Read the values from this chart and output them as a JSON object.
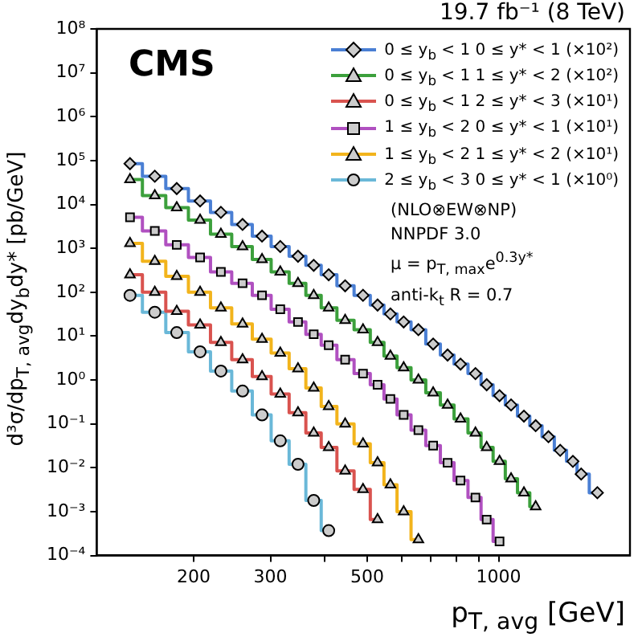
{
  "chart_data": {
    "type": "step",
    "title": "19.7 fb⁻¹ (8 TeV)",
    "xlabel": "p$_{T, avg}$ [GeV]",
    "ylabel": "d³σ/dp$_{T, avg}$dy$_{b}$dy* [pb/GeV]",
    "annotations": [
      "CMS",
      "(NLO⊗EW⊗NP)",
      "NNPDF 3.0",
      "μ = p$_{T, max}$e$^{0.3y*}$",
      "anti-k$_{t}$ R = 0.7"
    ],
    "log": "xy",
    "grid": false,
    "legend": "top right",
    "xlim": [
      120,
      2000
    ],
    "xticks": [
      200,
      300,
      {
        "value": 400,
        "label": null
      },
      500,
      {
        "value": 600,
        "label": null
      },
      {
        "value": 700,
        "label": null
      },
      {
        "value": 800,
        "label": null
      },
      {
        "value": 900,
        "label": null
      },
      1000
    ],
    "ylim": [
      0.0001,
      100000000
    ],
    "yticks": [
      {
        "value": 0.0001,
        "label": "10⁻⁴"
      },
      {
        "value": 0.001,
        "label": "10⁻³"
      },
      {
        "value": 0.01,
        "label": "10⁻²"
      },
      {
        "value": 0.1,
        "label": "10⁻¹"
      },
      {
        "value": 1,
        "label": "10⁰"
      },
      {
        "value": 10,
        "label": "10¹"
      },
      {
        "value": 100,
        "label": "10²"
      },
      {
        "value": 1000,
        "label": "10³"
      },
      {
        "value": 10000,
        "label": "10⁴"
      },
      {
        "value": 100000,
        "label": "10⁵"
      },
      {
        "value": 1000000,
        "label": "10⁶"
      },
      {
        "value": 10000000,
        "label": "10⁷"
      },
      {
        "value": 100000000,
        "label": "10⁸"
      }
    ],
    "x": [
      143,
      163,
      183,
      207,
      231,
      259,
      287,
      316,
      347,
      377,
      408,
      445,
      489,
      528,
      565,
      606,
      655,
      708,
      764,
      818,
      885,
      939,
      1005,
      1068,
      1143,
      1216,
      1301,
      1384,
      1480,
      1546,
      1684
    ],
    "series": [
      {
        "name": "0 ≤ y$_{b}$ < 1  0 ≤ y* < 1 (×10²)",
        "color": "#4a7fd4",
        "marker": "diamond",
        "values": [
          85000,
          44000,
          23000,
          12000,
          6600,
          3500,
          1900,
          1100,
          660,
          410,
          250,
          140,
          85,
          51,
          32,
          21,
          14,
          6.6,
          3.7,
          2.3,
          1.4,
          0.78,
          0.44,
          0.27,
          0.15,
          0.091,
          0.051,
          0.025,
          0.014,
          0.0072,
          0.0027
        ]
      },
      {
        "name": "0 ≤ y$_{b}$ < 1  1 ≤ y* < 2 (×10²)",
        "color": "#3ca03c",
        "marker": "triangle",
        "values": [
          37000,
          16000,
          8500,
          4400,
          2100,
          1100,
          560,
          290,
          160,
          85,
          44,
          23,
          14,
          7.2,
          3.5,
          1.9,
          1.0,
          0.51,
          0.27,
          0.13,
          0.062,
          0.029,
          0.014,
          0.0056,
          0.0027,
          0.0013,
          null,
          null,
          null,
          null,
          null
        ]
      },
      {
        "name": "0 ≤ y$_{b}$ < 1  2 ≤ y* < 3 (×10¹)",
        "color": "#d9534f",
        "marker": "triangle",
        "values": [
          250,
          100,
          37,
          18,
          7.2,
          2.9,
          1.2,
          0.48,
          0.18,
          0.062,
          0.029,
          0.0085,
          0.0032,
          0.00066,
          null,
          null,
          null,
          null,
          null,
          null,
          null,
          null,
          null,
          null,
          null,
          null,
          null,
          null,
          null,
          null,
          null
        ]
      },
      {
        "name": "1 ≤ y$_{b}$ < 2  0 ≤ y* < 1 (×10¹)",
        "color": "#b050c0",
        "marker": "square",
        "values": [
          5100,
          2500,
          1200,
          620,
          290,
          160,
          85,
          41,
          21,
          11,
          6.2,
          2.9,
          1.4,
          0.78,
          0.37,
          0.16,
          0.072,
          0.032,
          0.013,
          0.0051,
          0.0021,
          0.00066,
          0.00021,
          null,
          null,
          null,
          null,
          null,
          null,
          null,
          null
        ]
      },
      {
        "name": "1 ≤ y$_{b}$ < 2  1 ≤ y* < 2 (×10¹)",
        "color": "#f2b41c",
        "marker": "triangle",
        "values": [
          1300,
          510,
          230,
          100,
          44,
          19,
          8.5,
          4.1,
          1.8,
          0.66,
          0.25,
          0.1,
          0.035,
          0.013,
          0.0041,
          0.001,
          0.00023,
          null,
          null,
          null,
          null,
          null,
          null,
          null,
          null,
          null,
          null,
          null,
          null,
          null,
          null
        ]
      },
      {
        "name": "2 ≤ y$_{b}$ < 3  0 ≤ y* < 1 (×10⁰)",
        "color": "#6ab8d8",
        "marker": "circle",
        "values": [
          85,
          35,
          12,
          4.4,
          1.6,
          0.56,
          0.16,
          0.041,
          0.012,
          0.0018,
          0.00037,
          null,
          null,
          null,
          null,
          null,
          null,
          null,
          null,
          null,
          null,
          null,
          null,
          null,
          null,
          null,
          null,
          null,
          null,
          null,
          null
        ]
      }
    ]
  }
}
